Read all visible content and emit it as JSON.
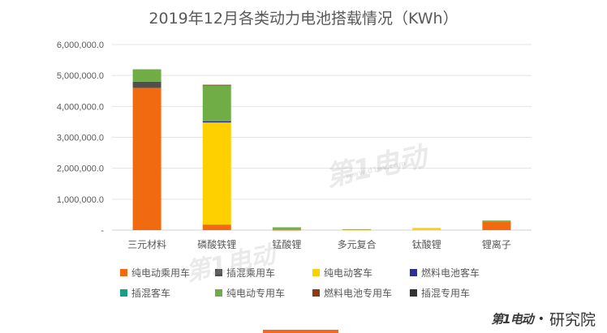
{
  "chart_data": {
    "type": "bar",
    "stacked": true,
    "title": "2019年12月各类动力电池搭载情况（KWh）",
    "categories": [
      "三元材料",
      "磷酸铁锂",
      "锰酸锂",
      "多元复合",
      "钛酸锂",
      "锂离子"
    ],
    "ylim": [
      0,
      6000000
    ],
    "yticks": [
      "-",
      "1,000,000.0",
      "2,000,000.0",
      "3,000,000.0",
      "4,000,000.0",
      "5,000,000.0",
      "6,000,000.0"
    ],
    "grid": true,
    "legend_position": "bottom",
    "series": [
      {
        "name": "纯电动乘用车",
        "color": "#f26a10",
        "values": [
          4600000,
          180000,
          10000,
          0,
          0,
          280000
        ]
      },
      {
        "name": "插混乘用车",
        "color": "#505050",
        "values": [
          200000,
          0,
          0,
          0,
          0,
          0
        ]
      },
      {
        "name": "纯电动客车",
        "color": "#ffd000",
        "values": [
          0,
          3300000,
          10000,
          10000,
          70000,
          0
        ]
      },
      {
        "name": "燃料电池客车",
        "color": "#2e3192",
        "values": [
          0,
          40000,
          0,
          0,
          0,
          0
        ]
      },
      {
        "name": "插混客车",
        "color": "#1a9e86",
        "values": [
          0,
          20000,
          10000,
          0,
          0,
          0
        ]
      },
      {
        "name": "纯电动专用车",
        "color": "#70ad47",
        "values": [
          400000,
          1150000,
          60000,
          20000,
          0,
          30000
        ]
      },
      {
        "name": "燃料电池专用车",
        "color": "#8b3a12",
        "values": [
          0,
          10000,
          0,
          0,
          0,
          0
        ]
      },
      {
        "name": "插混专用车",
        "color": "#333333",
        "values": [
          0,
          0,
          0,
          0,
          0,
          0
        ]
      }
    ]
  },
  "brand": {
    "logo": "第1电动",
    "dot": "•",
    "name": "研究院"
  },
  "watermark": {
    "text": "第1电动",
    "url": "www.d1ev.com"
  }
}
